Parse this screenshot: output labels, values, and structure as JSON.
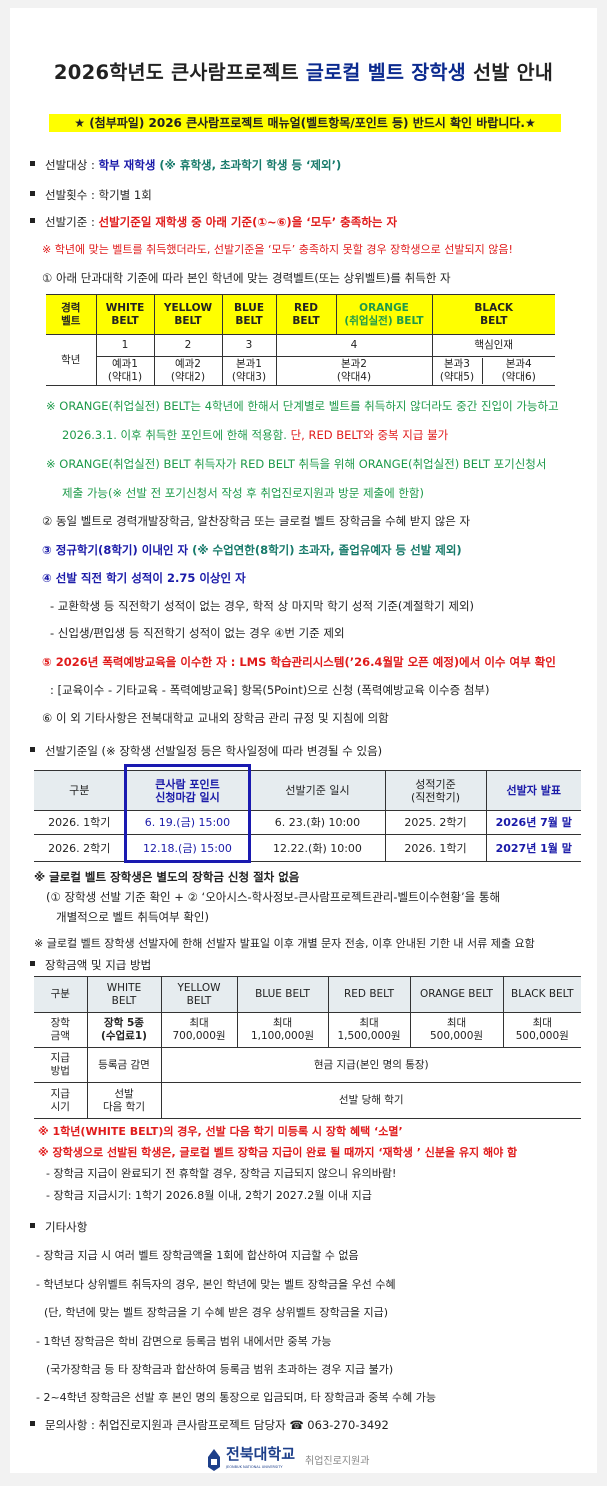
{
  "title": {
    "part1": "2026학년도 큰사람프로젝트 ",
    "part2": "글로컬 벨트 장학생",
    "part3": " 선발 안내"
  },
  "banner": "★ (첨부파일) 2026 큰사람프로젝트 매뉴얼(벨트항목/포인트 등) 반드시 확인 바랍니다.★",
  "target": {
    "label": "선발대상 : ",
    "value": "학부 재학생",
    "note": " (※ 휴학생, 초과학기 학생 등 ‘제외’)"
  },
  "count": {
    "label": "선발횟수 : ",
    "value": "학기별 1회"
  },
  "criteria": {
    "label": "선발기준 : ",
    "value": "선발기준일 재학생 중 아래 기준(①~⑥)을 ‘모두’ 충족하는 자",
    "warning": "※ 학년에 맞는 벨트를 취득했더라도, 선발기준을 ‘모두’ 충족하지 못할 경우 장학생으로 선발되지 않음!"
  },
  "c1": "① 아래 단과대학 기준에 따라 본인 학년에 맞는 경력벨트(또는 상위벨트)를 취득한 자",
  "belt_table": {
    "header": [
      "경력\n벨트",
      "WHITE\nBELT",
      "YELLOW\nBELT",
      "BLUE\nBELT",
      "RED\nBELT",
      "ORANGE\n(취업실전) BELT",
      "BLACK\nBELT"
    ],
    "row_label": "학년",
    "years": [
      "1",
      "2",
      "3",
      "4",
      "핵심인재"
    ],
    "colleges": [
      "예과1\n(약대1)",
      "예과2\n(약대2)",
      "본과1\n(약대3)",
      "본과2\n(약대4)",
      "본과3\n(약대5)",
      "본과4\n(약대6)"
    ]
  },
  "orange_notes": {
    "n1": "※ ORANGE(취업실전) BELT는 4학년에 한해서 단계별로 벨트를 취득하지 않더라도 중간 진입이 가능하고",
    "n2a": "2026.3.1. 이후 취득한 포인트에 한해 적용함.  ",
    "n2b": "단, RED BELT와 중복 지급 불가",
    "n3": "※ ORANGE(취업실전) BELT  취득자가 RED BELT 취득을 위해 ORANGE(취업실전) BELT 포기신청서",
    "n4": "제출 가능(※ 선발 전 포기신청서  작성 후 취업진로지원과 방문 제출에 한함)"
  },
  "c2": "② 동일 벨트로 경력개발장학금, 알찬장학금 또는 글로컬 벨트 장학금을 수혜 받지 않은 자",
  "c3": {
    "main": "③ 정규학기(8학기) 이내인 자",
    "note": " (※ 수업연한(8학기) 초과자, 졸업유예자 등 선발 제외)"
  },
  "c4": {
    "main": "④ 선발 직전 학기 성적이 2.75 이상인 자",
    "s1": "- 교환학생 등 직전학기 성적이 없는 경우, 학적 상 마지막 학기 성적 기준(계절학기 제외)",
    "s2": "- 신입생/편입생 등 직전학기 성적이 없는 경우 ④번 기준 제외"
  },
  "c5": {
    "main": "⑤ 2026년 폭력예방교육을 이수한 자 : LMS 학습관리시스템(’26.4월말 오픈 예정)에서 이수 여부 확인",
    "sub": ": [교육이수 - 기타교육 - 폭력예방교육] 항목(5Point)으로 신청 (폭력예방교육 이수증 첨부)"
  },
  "c6": "⑥ 이 외 기타사항은 전북대학교 교내외 장학금 관리 규정 및 지침에 의함",
  "schedule": {
    "label": "선발기준일  (※ 장학생 선발일정 등은 학사일정에 따라 변경될 수 있음)",
    "header": [
      "구분",
      "큰사람 포인트\n신청마감 일시",
      "선발기준 일시",
      "성적기준\n(직전학기)",
      "선발자 발표"
    ],
    "rows": [
      [
        "2026. 1학기",
        "6. 19.(금) 15:00",
        "6. 23.(화) 10:00",
        "2025. 2학기",
        "2026년 7월 말"
      ],
      [
        "2026. 2학기",
        "12.18.(금) 15:00",
        "12.22.(화) 10:00",
        "2026. 1학기",
        "2027년 1월 말"
      ]
    ],
    "n1": "※ 글로컬 벨트 장학생은 별도의 장학금 신청 절차 없음",
    "n2": "(① 장학생 선발 기준 확인 + ② ‘오아시스-학사정보-큰사람프로젝트관리-벨트이수현황’을 통해",
    "n3": "개별적으로 벨트 취득여부 확인)",
    "n4": "※ 글로컬 벨트 장학생 선발자에 한해 선발자 발표일 이후 개별 문자 전송, 이후 안내된 기한 내 서류 제출 요함"
  },
  "amount": {
    "label": "장학금액 및 지급 방법",
    "header": [
      "구분",
      "WHITE\nBELT",
      "YELLOW\nBELT",
      "BLUE BELT",
      "RED BELT",
      "ORANGE BELT",
      "BLACK BELT"
    ],
    "r1": [
      "장학\n금액",
      "장학 5종\n(수업료1)",
      "최대\n700,000원",
      "최대\n1,100,000원",
      "최대\n1,500,000원",
      "최대\n500,000원",
      "최대\n500,000원"
    ],
    "r2": [
      "지급\n방법",
      "등록금 감면",
      "현금 지급(본인 명의 통장)"
    ],
    "r3": [
      "지급\n시기",
      "선발\n다음 학기",
      "선발 당해 학기"
    ],
    "n1": "※ 1학년(WHITE BELT)의 경우, 선발 다음 학기 미등록 시 장학 혜택 ‘소멸’",
    "n2": "※ 장학생으로 선발된 학생은, 글로컬 벨트 장학금 지급이 완료 될 때까지  ‘재학생 ’  신분을 유지 해야 함",
    "n3": "-  장학금 지급이 완료되기 전 휴학할 경우, 장학금 지급되지 않으니 유의바람!",
    "n4": "-  장학금 지급시기: 1학기 2026.8월 이내, 2학기 2027.2월 이내 지급"
  },
  "etc": {
    "label": "기타사항",
    "items": [
      "- 장학금 지급 시 여러 벨트 장학금액을 1회에 합산하여 지급할 수 없음",
      "- 학년보다 상위벨트 취득자의 경우, 본인 학년에 맞는 벨트 장학금을 우선 수혜",
      "(단, 학년에 맞는 벨트 장학금을 기 수혜 받은 경우 상위벨트 장학금을 지급)",
      "- 1학년 장학금은 학비 감면으로 등록금 범위 내에서만 중복 가능",
      "(국가장학금 등 타 장학금과 합산하여 등록금 범위 초과하는 경우 지급 불가)",
      "- 2~4학년 장학금은 선발 후 본인 명의 통장으로 입금되며, 타 장학금과 중복 수혜 가능"
    ]
  },
  "contact": "문의사항 : 취업진로지원과 큰사람프로젝트 담당자 ☎ 063-270-3492",
  "footer": {
    "univ": "전북대학교",
    "univ_en": "JEONBUK NATIONAL UNIVERSITY",
    "dept": "취업진로지원과"
  },
  "colors": {
    "highlight": "#ffff00",
    "blue": "#1a1aa8",
    "red": "#e01b1b",
    "green": "#1e9a4a",
    "table_header": "#e6ecef"
  }
}
